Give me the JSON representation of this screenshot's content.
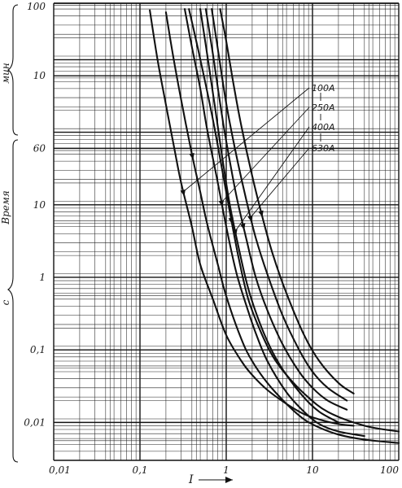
{
  "chart_data": {
    "type": "line",
    "x_scale": "log",
    "y_scale": "log",
    "x_ticks": [
      "0,01",
      "0,1",
      "1",
      "10",
      "100"
    ],
    "xlabel": "I",
    "xlim": [
      0.01,
      100
    ],
    "y_ticks_sec": [
      "0,01",
      "0,1",
      "1",
      "10",
      "60"
    ],
    "y_ticks_min": [
      "10",
      "100"
    ],
    "ylim_seconds": [
      0.003,
      6000
    ],
    "ylabel": "Время",
    "unit_sec": "с",
    "unit_min": "мин",
    "grid": true,
    "series": [
      {
        "name": "100A",
        "arrow_at": 0.37,
        "x": [
          0.13,
          0.16,
          0.2,
          0.25,
          0.3,
          0.4,
          0.5,
          0.7,
          1.0,
          1.5,
          2,
          3,
          5,
          8,
          12,
          20,
          30
        ],
        "y": [
          4800,
          1000,
          240,
          60,
          20,
          5,
          1.5,
          0.5,
          0.16,
          0.07,
          0.045,
          0.028,
          0.018,
          0.013,
          0.011,
          0.0095,
          0.009
        ]
      },
      {
        "name": "100A",
        "arrow_at": 0.27,
        "x": [
          0.2,
          0.24,
          0.3,
          0.4,
          0.5,
          0.6,
          0.8,
          1.0,
          1.5,
          2,
          3,
          5,
          8,
          12,
          20,
          40,
          100
        ],
        "y": [
          4500,
          1200,
          280,
          50,
          15,
          5.5,
          1.5,
          0.55,
          0.14,
          0.07,
          0.035,
          0.018,
          0.011,
          0.0085,
          0.0068,
          0.0058,
          0.0052
        ]
      },
      {
        "name": "250A",
        "arrow_at": 0.4,
        "x": [
          0.33,
          0.4,
          0.5,
          0.6,
          0.8,
          1.0,
          1.3,
          1.7,
          2.2,
          3,
          5,
          8,
          12,
          20,
          40
        ],
        "y": [
          5000,
          1500,
          400,
          110,
          20,
          5,
          1.2,
          0.42,
          0.17,
          0.07,
          0.026,
          0.014,
          0.0095,
          0.0075,
          0.0065
        ]
      },
      {
        "name": "250A",
        "arrow_at": 0.42,
        "x": [
          0.37,
          0.45,
          0.55,
          0.7,
          0.9,
          1.1,
          1.4,
          1.8,
          2.5,
          3.5,
          5,
          8,
          15,
          40,
          100
        ],
        "y": [
          5000,
          1800,
          600,
          150,
          30,
          8,
          1.8,
          0.5,
          0.18,
          0.08,
          0.045,
          0.025,
          0.014,
          0.009,
          0.0075
        ]
      },
      {
        "name": "400A",
        "arrow_at": 0.5,
        "x": [
          0.5,
          0.6,
          0.75,
          0.9,
          1.1,
          1.4,
          1.8,
          2.5,
          3.5,
          5,
          8,
          12,
          20
        ],
        "y": [
          5000,
          1200,
          200,
          45,
          10,
          2.5,
          0.7,
          0.22,
          0.09,
          0.045,
          0.022,
          0.014,
          0.01
        ]
      },
      {
        "name": "400A",
        "arrow_at": 0.5,
        "x": [
          0.58,
          0.7,
          0.85,
          1.0,
          1.3,
          1.7,
          2.2,
          3,
          4.5,
          7,
          10,
          15,
          25
        ],
        "y": [
          5000,
          1200,
          250,
          75,
          14,
          3.5,
          1.0,
          0.35,
          0.12,
          0.05,
          0.03,
          0.02,
          0.015
        ]
      },
      {
        "name": "630A",
        "arrow_at": 0.5,
        "x": [
          0.68,
          0.8,
          1.0,
          1.3,
          1.7,
          2.2,
          3,
          4.5,
          7,
          10,
          15,
          25
        ],
        "y": [
          5000,
          1400,
          250,
          50,
          12,
          3.5,
          1.1,
          0.3,
          0.1,
          0.05,
          0.03,
          0.02
        ]
      },
      {
        "name": "630A",
        "arrow_at": 0.5,
        "x": [
          0.85,
          1.0,
          1.2,
          1.5,
          2,
          2.7,
          3.5,
          5,
          8,
          12,
          20,
          30
        ],
        "y": [
          5000,
          1800,
          500,
          120,
          25,
          6,
          2,
          0.6,
          0.16,
          0.07,
          0.035,
          0.025
        ]
      }
    ],
    "legend": [
      "100A",
      "250A",
      "400A",
      "630A"
    ]
  }
}
